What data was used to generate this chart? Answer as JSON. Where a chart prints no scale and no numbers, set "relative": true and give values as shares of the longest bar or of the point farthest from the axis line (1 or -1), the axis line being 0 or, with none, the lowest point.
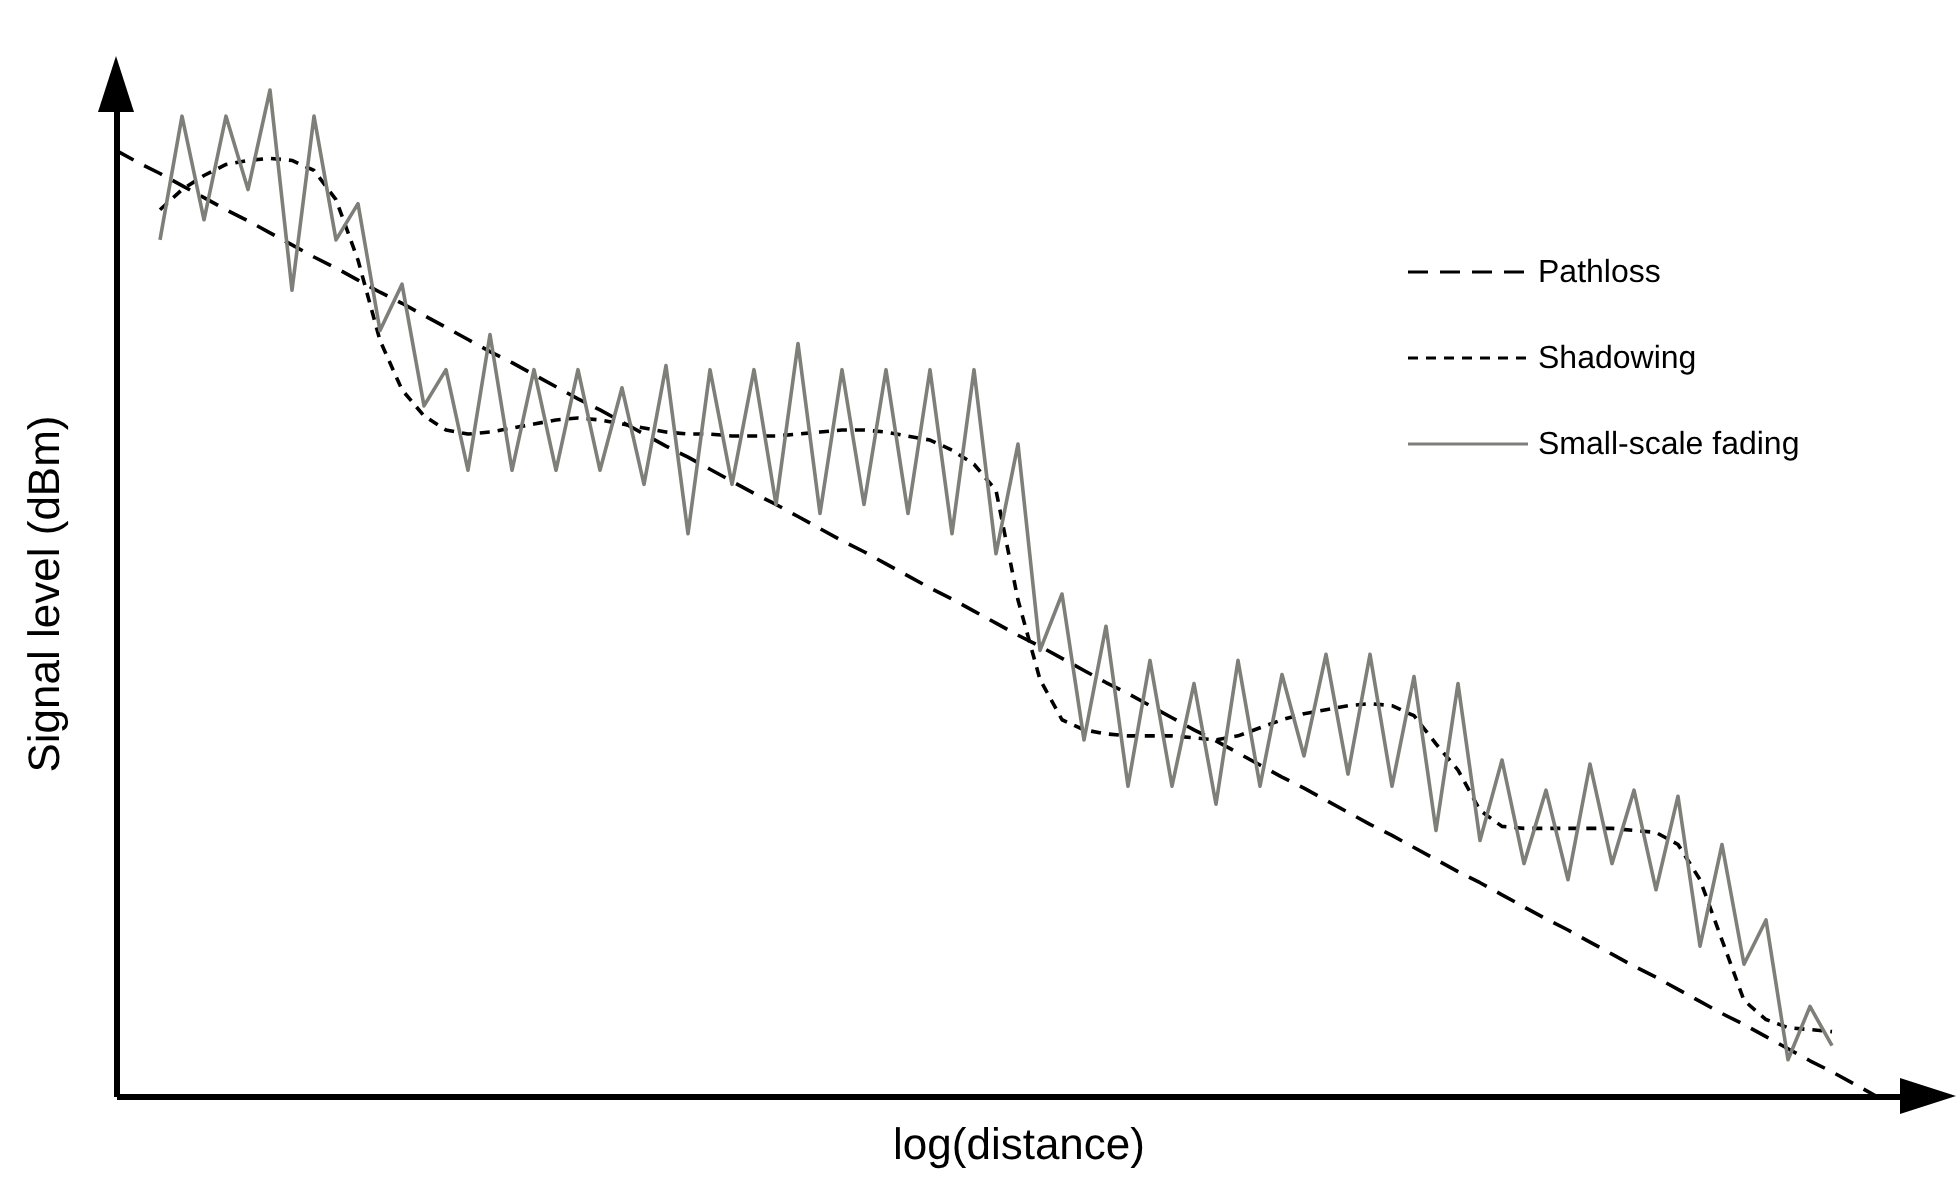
{
  "chart_data": {
    "type": "line",
    "relative": true,
    "xlabel": "log(distance)",
    "ylabel": "Signal level (dBm)",
    "legend": "top right",
    "categories": [
      null,
      null,
      null,
      null,
      null,
      null,
      null,
      null,
      null,
      null,
      null,
      null,
      null,
      null,
      null,
      null,
      null,
      null,
      null,
      null,
      null,
      null,
      null,
      null,
      null,
      null,
      null,
      null,
      null,
      null,
      null,
      null,
      null,
      null,
      null,
      null,
      null,
      null,
      null,
      null,
      null,
      null,
      null,
      null,
      null,
      null,
      null,
      null,
      null,
      null,
      null,
      null,
      null,
      null,
      null,
      null,
      null,
      null,
      null,
      null,
      null,
      null,
      null,
      null,
      null,
      null,
      null,
      null,
      null,
      null,
      null,
      null,
      null,
      null,
      null,
      null,
      null,
      null,
      null,
      null,
      null
    ],
    "series": [
      {
        "name": "Pathloss",
        "color": "#000000",
        "line_style": "dashed",
        "values": [
          0.94,
          0.928,
          0.917,
          0.905,
          0.893,
          0.881,
          0.87,
          0.858,
          0.846,
          0.834,
          0.823,
          0.811,
          0.799,
          0.788,
          0.776,
          0.764,
          0.752,
          0.74,
          0.729,
          0.717,
          0.705,
          0.693,
          0.682,
          0.67,
          0.658,
          0.646,
          0.635,
          0.623,
          0.611,
          0.599,
          0.588,
          0.576,
          0.564,
          0.552,
          0.541,
          0.529,
          0.517,
          0.505,
          0.494,
          0.482,
          0.47,
          0.458,
          0.447,
          0.435,
          0.423,
          0.411,
          0.4,
          0.388,
          0.376,
          0.364,
          0.353,
          0.341,
          0.329,
          0.317,
          0.306,
          0.294,
          0.282,
          0.27,
          0.259,
          0.247,
          0.235,
          0.223,
          0.212,
          0.2,
          0.188,
          0.176,
          0.165,
          0.153,
          0.141,
          0.129,
          0.118,
          0.106,
          0.094,
          0.082,
          0.071,
          0.059,
          0.047,
          0.035,
          0.024,
          0.012,
          0
        ]
      },
      {
        "name": "Shadowing",
        "color": "#000000",
        "line_style": "dotted",
        "values": [
          null,
          null,
          0.881,
          0.901,
          0.915,
          0.926,
          0.93,
          0.932,
          0.93,
          0.92,
          0.891,
          0.831,
          0.751,
          0.702,
          0.676,
          0.662,
          0.658,
          0.66,
          0.664,
          0.668,
          0.672,
          0.674,
          0.672,
          0.668,
          0.664,
          0.66,
          0.658,
          0.658,
          0.656,
          0.656,
          0.656,
          0.658,
          0.66,
          0.662,
          0.662,
          0.66,
          0.656,
          0.652,
          0.642,
          0.628,
          0.602,
          0.493,
          0.414,
          0.374,
          0.364,
          0.36,
          0.358,
          0.358,
          0.358,
          0.356,
          0.354,
          0.358,
          0.366,
          0.374,
          0.38,
          0.384,
          0.388,
          0.39,
          0.388,
          0.378,
          0.35,
          0.324,
          0.284,
          0.268,
          0.266,
          0.266,
          0.266,
          0.266,
          0.266,
          0.264,
          0.262,
          0.25,
          0.215,
          0.155,
          0.095,
          0.076,
          0.068,
          0.066,
          0.064,
          null,
          null
        ]
      },
      {
        "name": "Small-scale fading",
        "color": "#7f7f7a",
        "line_style": "solid",
        "values": [
          null,
          null,
          0.851,
          0.974,
          0.871,
          0.974,
          0.901,
          1,
          0.801,
          0.974,
          0.851,
          0.887,
          0.761,
          0.807,
          0.686,
          0.722,
          0.622,
          0.757,
          0.622,
          0.722,
          0.622,
          0.722,
          0.622,
          0.704,
          0.608,
          0.726,
          0.559,
          0.722,
          0.608,
          0.722,
          0.588,
          0.748,
          0.579,
          0.722,
          0.588,
          0.722,
          0.579,
          0.722,
          0.559,
          0.722,
          0.539,
          0.648,
          0.443,
          0.499,
          0.354,
          0.467,
          0.308,
          0.433,
          0.308,
          0.41,
          0.29,
          0.433,
          0.308,
          0.419,
          0.338,
          0.439,
          0.32,
          0.439,
          0.308,
          0.417,
          0.264,
          0.41,
          0.254,
          0.334,
          0.231,
          0.304,
          0.215,
          0.33,
          0.231,
          0.304,
          0.205,
          0.298,
          0.149,
          0.25,
          0.131,
          0.175,
          0.036,
          0.089,
          0.05,
          null,
          null
        ]
      }
    ]
  }
}
